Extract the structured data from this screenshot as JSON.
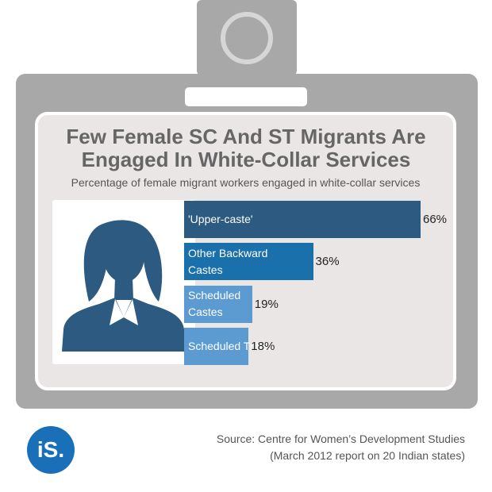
{
  "chart_data": {
    "type": "hbar",
    "title": "Few Female SC And ST Migrants Are Engaged In White-Collar Services",
    "subtitle": "Percentage of female migrant workers engaged in white-collar services",
    "categories": [
      "'Upper-caste'",
      "Other Backward Castes",
      "Scheduled Castes",
      "Scheduled Tribes"
    ],
    "values": [
      66,
      36,
      19,
      18
    ],
    "value_labels": [
      "66%",
      "36%",
      "19%",
      "18%"
    ],
    "colors": [
      "#2c5a80",
      "#1a70aa",
      "#5b9bd2",
      "#5b9bd2"
    ],
    "source": [
      "Source: Centre for Women’s Development Studies",
      "(March 2012 report on 20 Indian states)"
    ],
    "logo": "iS."
  }
}
